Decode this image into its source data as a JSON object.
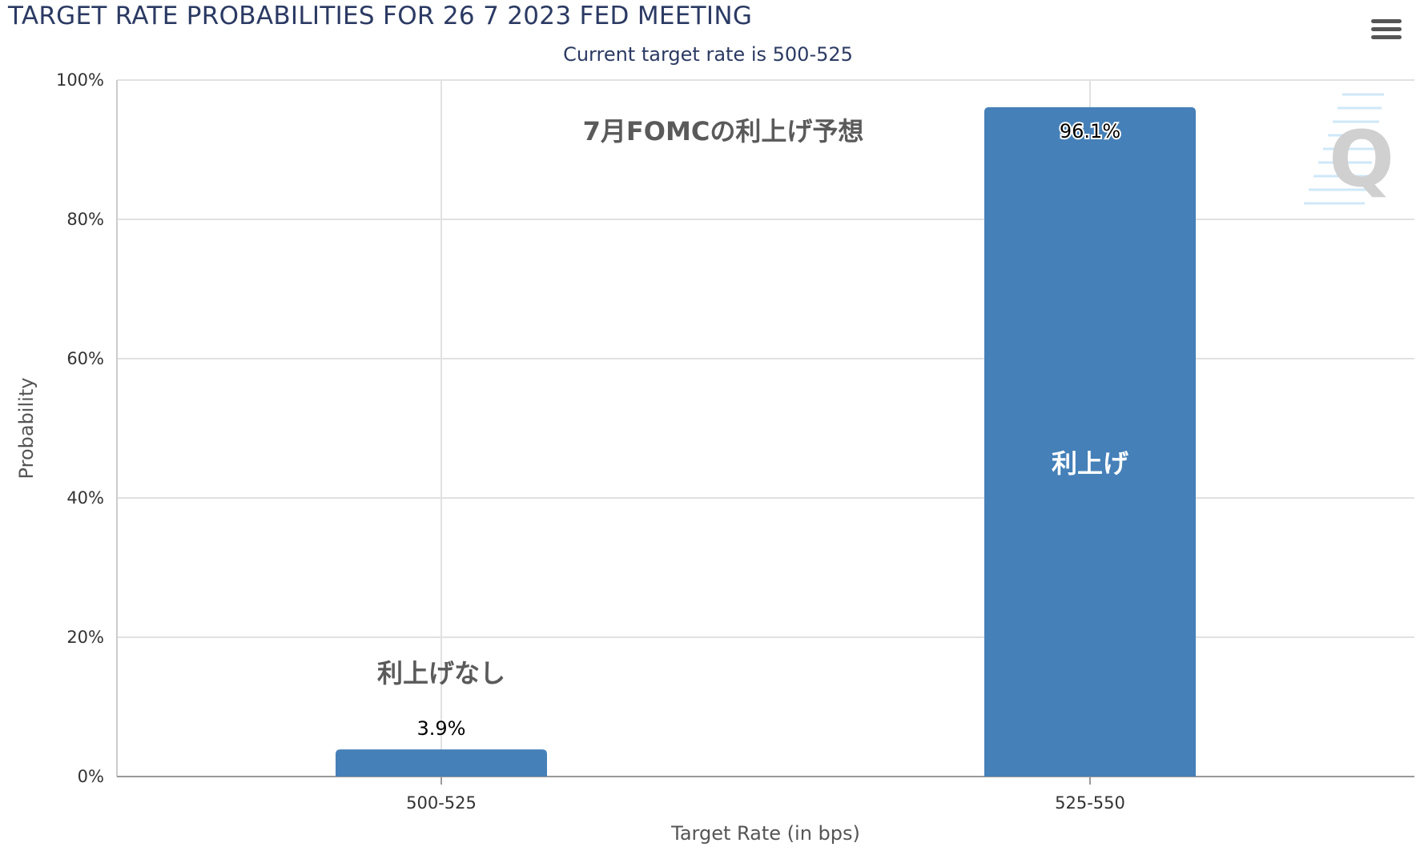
{
  "header": {
    "title": "TARGET RATE PROBABILITIES FOR 26 7 2023 FED MEETING",
    "subtitle": "Current target rate is 500-525",
    "menu_icon": "hamburger-menu-icon"
  },
  "watermark": {
    "text": "Q"
  },
  "colors": {
    "bar": "#4580b8",
    "grid": "#e1e1e1",
    "title": "#2b3a63"
  },
  "chart_data": {
    "type": "bar",
    "title": "TARGET RATE PROBABILITIES FOR 26 7 2023 FED MEETING",
    "subtitle": "Current target rate is 500-525",
    "categories": [
      "500-525",
      "525-550"
    ],
    "values": [
      3.9,
      96.1
    ],
    "data_labels": [
      "3.9%",
      "96.1%"
    ],
    "xlabel": "Target Rate (in bps)",
    "ylabel": "Probability",
    "ylim": [
      0,
      100
    ],
    "yticks": [
      "0%",
      "20%",
      "40%",
      "60%",
      "80%",
      "100%"
    ],
    "grid": true,
    "annotations": [
      {
        "text": "7月FOMCの利上げ予想"
      },
      {
        "text": "利上げなし"
      },
      {
        "text": "利上げ"
      }
    ]
  }
}
